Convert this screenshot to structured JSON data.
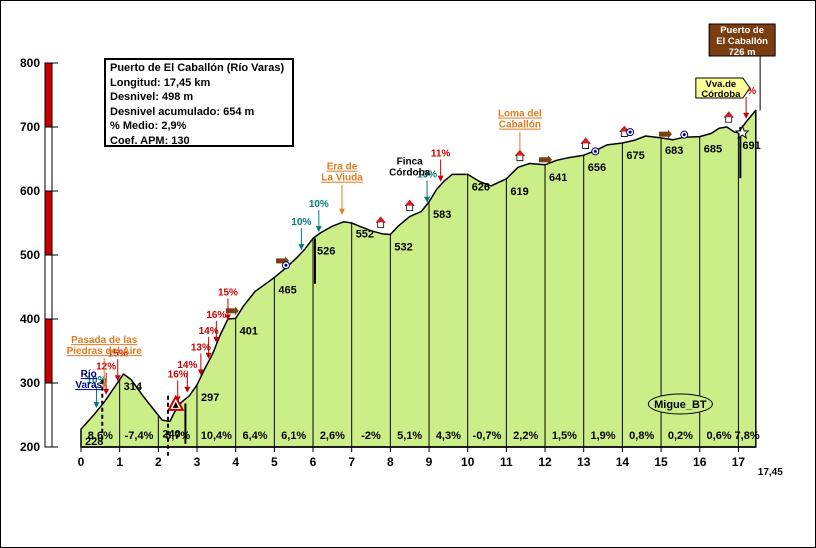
{
  "chart_data": {
    "type": "area",
    "title": "Puerto de El Caballón (Río Varas)",
    "stats": [
      "Longitud: 17,45 km",
      "Desnivel: 498 m",
      "Desnivel acumulado: 654 m",
      "% Medio: 2,9%",
      "Coef. APM: 130"
    ],
    "xlabel": "",
    "ylabel": "",
    "xlim": [
      0,
      17.45
    ],
    "ylim": [
      200,
      800
    ],
    "x_ticks": [
      0,
      1,
      2,
      3,
      4,
      5,
      6,
      7,
      8,
      9,
      10,
      11,
      12,
      13,
      14,
      15,
      16,
      17
    ],
    "x_tick_labels": [
      "0",
      "1",
      "2",
      "3",
      "4",
      "5",
      "6",
      "7",
      "8",
      "9",
      "10",
      "11",
      "12",
      "13",
      "14",
      "15",
      "16",
      "17"
    ],
    "x_end_label": "17,45",
    "y_ticks": [
      200,
      300,
      400,
      500,
      600,
      700,
      800
    ],
    "y_tick_labels": [
      "200",
      "300",
      "400",
      "500",
      "600",
      "700",
      "800"
    ],
    "profile": {
      "x": [
        0,
        0.3,
        0.6,
        0.85,
        1.1,
        1.3,
        1.6,
        1.9,
        2.1,
        2.3,
        2.45,
        2.6,
        2.8,
        3.0,
        3.2,
        3.4,
        3.6,
        3.8,
        4.0,
        4.2,
        4.5,
        4.8,
        5.0,
        5.3,
        5.6,
        5.8,
        6.0,
        6.2,
        6.5,
        6.8,
        7.0,
        7.2,
        7.5,
        7.8,
        8.0,
        8.2,
        8.5,
        8.8,
        9.0,
        9.2,
        9.4,
        9.6,
        9.8,
        10.0,
        10.3,
        10.6,
        11.0,
        11.3,
        11.6,
        12.0,
        12.3,
        12.6,
        13.0,
        13.3,
        13.6,
        14.0,
        14.3,
        14.6,
        15.0,
        15.3,
        15.6,
        16.0,
        16.3,
        16.5,
        16.7,
        16.9,
        17.0,
        17.2,
        17.45
      ],
      "y": [
        228,
        248,
        270,
        292,
        314,
        305,
        280,
        257,
        242,
        240,
        258,
        270,
        280,
        297,
        322,
        345,
        375,
        400,
        401,
        420,
        443,
        456,
        465,
        480,
        497,
        510,
        526,
        535,
        545,
        552,
        550,
        545,
        538,
        533,
        532,
        545,
        560,
        568,
        583,
        603,
        616,
        626,
        626,
        626,
        615,
        608,
        619,
        637,
        643,
        641,
        648,
        652,
        656,
        663,
        672,
        675,
        679,
        686,
        683,
        680,
        684,
        685,
        690,
        698,
        700,
        692,
        691,
        708,
        726
      ]
    },
    "segment_grades": [
      "8,6%",
      "-7,4%",
      "5,7%",
      "10,4%",
      "6,4%",
      "6,1%",
      "2,6%",
      "-2%",
      "5,1%",
      "4,3%",
      "-0,7%",
      "2,2%",
      "1,5%",
      "1,9%",
      "0,8%",
      "0,2%",
      "0,6%",
      "7,8%"
    ],
    "km_altitudes": [
      {
        "x": 0,
        "y": 228,
        "label": "228"
      },
      {
        "x": 1,
        "y": 314,
        "label": "314"
      },
      {
        "x": 2,
        "y": 240,
        "label": "240"
      },
      {
        "x": 3,
        "y": 297,
        "label": "297"
      },
      {
        "x": 4,
        "y": 401,
        "label": "401"
      },
      {
        "x": 5,
        "y": 465,
        "label": "465"
      },
      {
        "x": 6,
        "y": 526,
        "label": "526"
      },
      {
        "x": 7,
        "y": 552,
        "label": "552"
      },
      {
        "x": 8,
        "y": 532,
        "label": "532"
      },
      {
        "x": 9,
        "y": 583,
        "label": "583"
      },
      {
        "x": 10,
        "y": 626,
        "label": "626"
      },
      {
        "x": 11,
        "y": 619,
        "label": "619"
      },
      {
        "x": 12,
        "y": 641,
        "label": "641"
      },
      {
        "x": 13,
        "y": 656,
        "label": "656"
      },
      {
        "x": 14,
        "y": 675,
        "label": "675"
      },
      {
        "x": 15,
        "y": 683,
        "label": "683"
      },
      {
        "x": 16,
        "y": 685,
        "label": "685"
      },
      {
        "x": 17,
        "y": 691,
        "label": "691"
      }
    ],
    "ramp_labels": [
      {
        "text": "10%",
        "x": 0.4,
        "y": 256,
        "color": "#007b7b"
      },
      {
        "text": "12%",
        "x": 0.65,
        "y": 277,
        "color": "#cc0000"
      },
      {
        "text": "15%",
        "x": 0.95,
        "y": 298,
        "color": "#cc0000"
      },
      {
        "text": "16%",
        "x": 2.5,
        "y": 265,
        "color": "#cc0000"
      },
      {
        "text": "14%",
        "x": 2.75,
        "y": 280,
        "color": "#cc0000"
      },
      {
        "text": "13%",
        "x": 3.1,
        "y": 307,
        "color": "#cc0000"
      },
      {
        "text": "14%",
        "x": 3.3,
        "y": 333,
        "color": "#cc0000"
      },
      {
        "text": "16%",
        "x": 3.5,
        "y": 358,
        "color": "#cc0000"
      },
      {
        "text": "15%",
        "x": 3.8,
        "y": 393,
        "color": "#cc0000"
      },
      {
        "text": "10%",
        "x": 5.7,
        "y": 503,
        "color": "#007b7b"
      },
      {
        "text": "10%",
        "x": 6.15,
        "y": 531,
        "color": "#007b7b"
      },
      {
        "text": "10%",
        "x": 8.95,
        "y": 577,
        "color": "#007b7b"
      },
      {
        "text": "11%",
        "x": 9.3,
        "y": 610,
        "color": "#cc0000"
      },
      {
        "text": "13%",
        "x": 17.2,
        "y": 708,
        "color": "#cc0000"
      }
    ],
    "places": [
      {
        "lines": [
          "Pasada de las",
          "Piedras del Aire"
        ],
        "x": 0.6,
        "y": 281,
        "color": "#e07b20",
        "underline": true
      },
      {
        "lines": [
          "Era de",
          "La Viuda"
        ],
        "x": 6.75,
        "y": 552,
        "color": "#e07b20",
        "underline": true
      },
      {
        "lines": [
          "Loma del",
          "Caballón"
        ],
        "x": 11.35,
        "y": 635,
        "color": "#e07b20",
        "underline": true
      },
      {
        "lines": [
          "Finca",
          "Córdoba"
        ],
        "x": 8.5,
        "y": 560,
        "color": "#000000",
        "underline": false
      },
      {
        "lines": [
          "Río",
          "Varas"
        ],
        "x": 0.2,
        "y": 228,
        "color": "#000080",
        "underline": true
      }
    ],
    "summit_sign": {
      "lines": [
        "Puerto de",
        "El Caballón",
        "726 m"
      ],
      "x": 17.2
    },
    "direction_sign": {
      "lines": [
        "Vva.de",
        "Córdoba"
      ],
      "x": 16.65
    },
    "watermark": "Migue_BT",
    "colors": {
      "fill": "#ccee88",
      "line": "#000000",
      "axis_red": "#cc0000",
      "grade_box": "#ccee88",
      "sign_bg": "#7a3d10",
      "sign_text": "#ffffff",
      "direction_bg": "#ffff99"
    }
  }
}
